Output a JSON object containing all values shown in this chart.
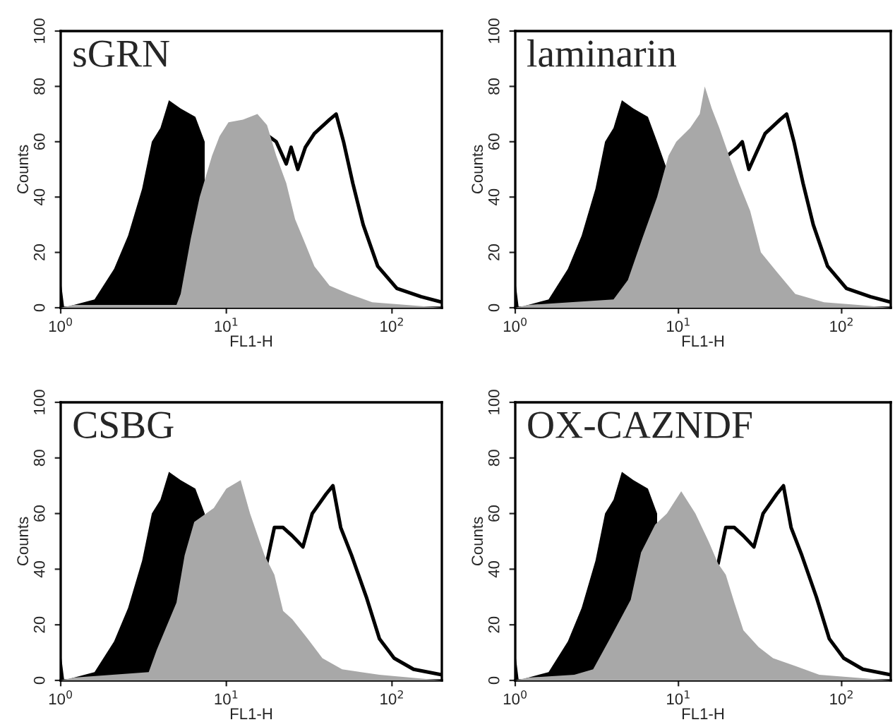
{
  "chart_data": [
    {
      "type": "area",
      "title": "sGRN",
      "xlabel": "FL1-H",
      "ylabel": "Counts",
      "log": "x",
      "grid": false,
      "legend": false,
      "xlim": [
        1,
        200
      ],
      "xticks": [
        {
          "value": 1,
          "label": "10$^{0}$"
        },
        {
          "value": 10,
          "label": "10$^{1}$"
        },
        {
          "value": 100,
          "label": "10$^{2}$"
        }
      ],
      "ylim": [
        0,
        100
      ],
      "yticks": [
        0,
        20,
        40,
        60,
        80,
        100
      ],
      "series": [
        {
          "type": "line",
          "color": "#000000",
          "x": [
            18,
            20,
            23,
            24.6,
            27,
            30,
            34,
            42,
            46,
            51,
            58,
            67,
            82,
            107,
            150,
            200
          ],
          "values": [
            62,
            60,
            52,
            58,
            50,
            58,
            63,
            68,
            70,
            60,
            45,
            30,
            15,
            7,
            4,
            2
          ]
        },
        {
          "color": "#000000",
          "x": [
            1.0,
            1.05,
            1.2,
            1.6,
            2.1,
            2.55,
            3.1,
            3.55,
            4.0,
            4.5,
            5.3,
            6.5,
            7.4
          ],
          "values": [
            10,
            0,
            1,
            3,
            14,
            26,
            43,
            60,
            65,
            75,
            72,
            69,
            60
          ]
        },
        {
          "color": "#a8a8a8",
          "x": [
            1.0,
            1.2,
            5.0,
            5.3,
            6.1,
            6.9,
            8.2,
            9.1,
            10.3,
            12.6,
            15.4,
            17.6,
            20,
            23,
            26,
            30,
            34,
            42,
            55,
            76,
            122,
            200
          ],
          "values": [
            0,
            1,
            1,
            5,
            25,
            40,
            55,
            62,
            67,
            68,
            70,
            66,
            55,
            45,
            32,
            23,
            15,
            8,
            5,
            2,
            1,
            0
          ]
        }
      ]
    },
    {
      "type": "area",
      "title": "laminarin",
      "xlabel": "FL1-H",
      "ylabel": "Counts",
      "log": "x",
      "grid": false,
      "legend": false,
      "xlim": [
        1,
        200
      ],
      "xticks": [
        {
          "value": 1,
          "label": "10$^{0}$"
        },
        {
          "value": 10,
          "label": "10$^{1}$"
        },
        {
          "value": 100,
          "label": "10$^{2}$"
        }
      ],
      "ylim": [
        0,
        100
      ],
      "yticks": [
        0,
        20,
        40,
        60,
        80,
        100
      ],
      "series": [
        {
          "type": "line",
          "color": "#000000",
          "x": [
            20,
            23,
            24.6,
            27,
            30,
            34,
            42,
            46,
            51,
            58,
            67,
            82,
            107,
            150,
            200
          ],
          "values": [
            55,
            58,
            60,
            50,
            56,
            63,
            68,
            70,
            60,
            45,
            30,
            15,
            7,
            4,
            2
          ]
        },
        {
          "color": "#000000",
          "x": [
            1.0,
            1.05,
            1.2,
            1.6,
            2.1,
            2.55,
            3.1,
            3.55,
            4.0,
            4.5,
            5.3,
            6.5,
            7.4,
            8.5
          ],
          "values": [
            10,
            0,
            1,
            3,
            14,
            26,
            43,
            60,
            65,
            75,
            72,
            69,
            60,
            50
          ]
        },
        {
          "color": "#a8a8a8",
          "x": [
            1.0,
            1.2,
            4.0,
            4.9,
            6.0,
            7.4,
            8.7,
            9.7,
            11.8,
            13.5,
            14.5,
            16,
            17.8,
            20.4,
            23.5,
            27.5,
            32,
            40,
            52,
            78,
            126,
            200
          ],
          "values": [
            0,
            1,
            3,
            10,
            25,
            40,
            55,
            60,
            65,
            70,
            80,
            72,
            65,
            55,
            45,
            35,
            20,
            13,
            5,
            2,
            1,
            0
          ]
        }
      ]
    },
    {
      "type": "area",
      "title": "CSBG",
      "xlabel": "FL1-H",
      "ylabel": "Counts",
      "log": "x",
      "grid": false,
      "legend": false,
      "xlim": [
        1,
        200
      ],
      "xticks": [
        {
          "value": 1,
          "label": "10$^{0}$"
        },
        {
          "value": 10,
          "label": "10$^{1}$"
        },
        {
          "value": 100,
          "label": "10$^{2}$"
        }
      ],
      "ylim": [
        0,
        100
      ],
      "yticks": [
        0,
        20,
        40,
        60,
        80,
        100
      ],
      "series": [
        {
          "type": "line",
          "color": "#000000",
          "x": [
            17.5,
            19.5,
            22,
            25,
            29,
            33,
            40,
            44,
            49,
            57,
            70,
            84,
            103,
            135,
            200
          ],
          "values": [
            42,
            55,
            55,
            52,
            48,
            60,
            67,
            70,
            55,
            45,
            30,
            15,
            8,
            4,
            2
          ]
        },
        {
          "color": "#000000",
          "x": [
            1.0,
            1.05,
            1.2,
            1.6,
            2.1,
            2.55,
            3.1,
            3.55,
            4.0,
            4.5,
            5.3,
            6.5,
            7.4
          ],
          "values": [
            10,
            0,
            1,
            3,
            14,
            26,
            43,
            60,
            65,
            75,
            72,
            69,
            60
          ]
        },
        {
          "color": "#a8a8a8",
          "x": [
            1.0,
            1.2,
            3.4,
            3.8,
            5.0,
            5.6,
            6.4,
            8.4,
            10,
            12.2,
            13.9,
            17,
            19.5,
            22,
            25,
            31,
            38,
            50,
            84,
            200
          ],
          "values": [
            0,
            1,
            3,
            11,
            28,
            45,
            57,
            62,
            69,
            72,
            60,
            45,
            38,
            25,
            22,
            15,
            8,
            4,
            2,
            0
          ]
        }
      ]
    },
    {
      "type": "area",
      "title": "OX-CAZNDF",
      "xlabel": "FL1-H",
      "ylabel": "Counts",
      "log": "x",
      "grid": false,
      "legend": false,
      "xlim": [
        1,
        200
      ],
      "xticks": [
        {
          "value": 1,
          "label": "10$^{0}$"
        },
        {
          "value": 10,
          "label": "10$^{1}$"
        },
        {
          "value": 100,
          "label": "10$^{2}$"
        }
      ],
      "ylim": [
        0,
        100
      ],
      "yticks": [
        0,
        20,
        40,
        60,
        80,
        100
      ],
      "series": [
        {
          "type": "line",
          "color": "#000000",
          "x": [
            17.5,
            19.5,
            22,
            25,
            29,
            33,
            40,
            44,
            49,
            57,
            70,
            84,
            103,
            135,
            200
          ],
          "values": [
            42,
            55,
            55,
            52,
            48,
            60,
            67,
            70,
            55,
            45,
            30,
            15,
            8,
            4,
            2
          ]
        },
        {
          "color": "#000000",
          "x": [
            1.0,
            1.05,
            1.2,
            1.6,
            2.1,
            2.55,
            3.1,
            3.55,
            4.0,
            4.5,
            5.3,
            6.5,
            7.4
          ],
          "values": [
            10,
            0,
            1,
            3,
            14,
            26,
            43,
            60,
            65,
            75,
            72,
            69,
            60
          ]
        },
        {
          "color": "#a8a8a8",
          "x": [
            1.0,
            1.2,
            2.3,
            3.0,
            3.8,
            5.1,
            5.9,
            7.2,
            8.5,
            10.4,
            12.7,
            15.3,
            17.5,
            19.5,
            22,
            25,
            31,
            38,
            53,
            73,
            200
          ],
          "values": [
            0,
            1,
            2,
            4,
            15,
            29,
            46,
            56,
            60,
            68,
            60,
            50,
            42,
            38,
            28,
            18,
            12,
            8,
            5,
            2,
            0
          ]
        }
      ]
    }
  ]
}
